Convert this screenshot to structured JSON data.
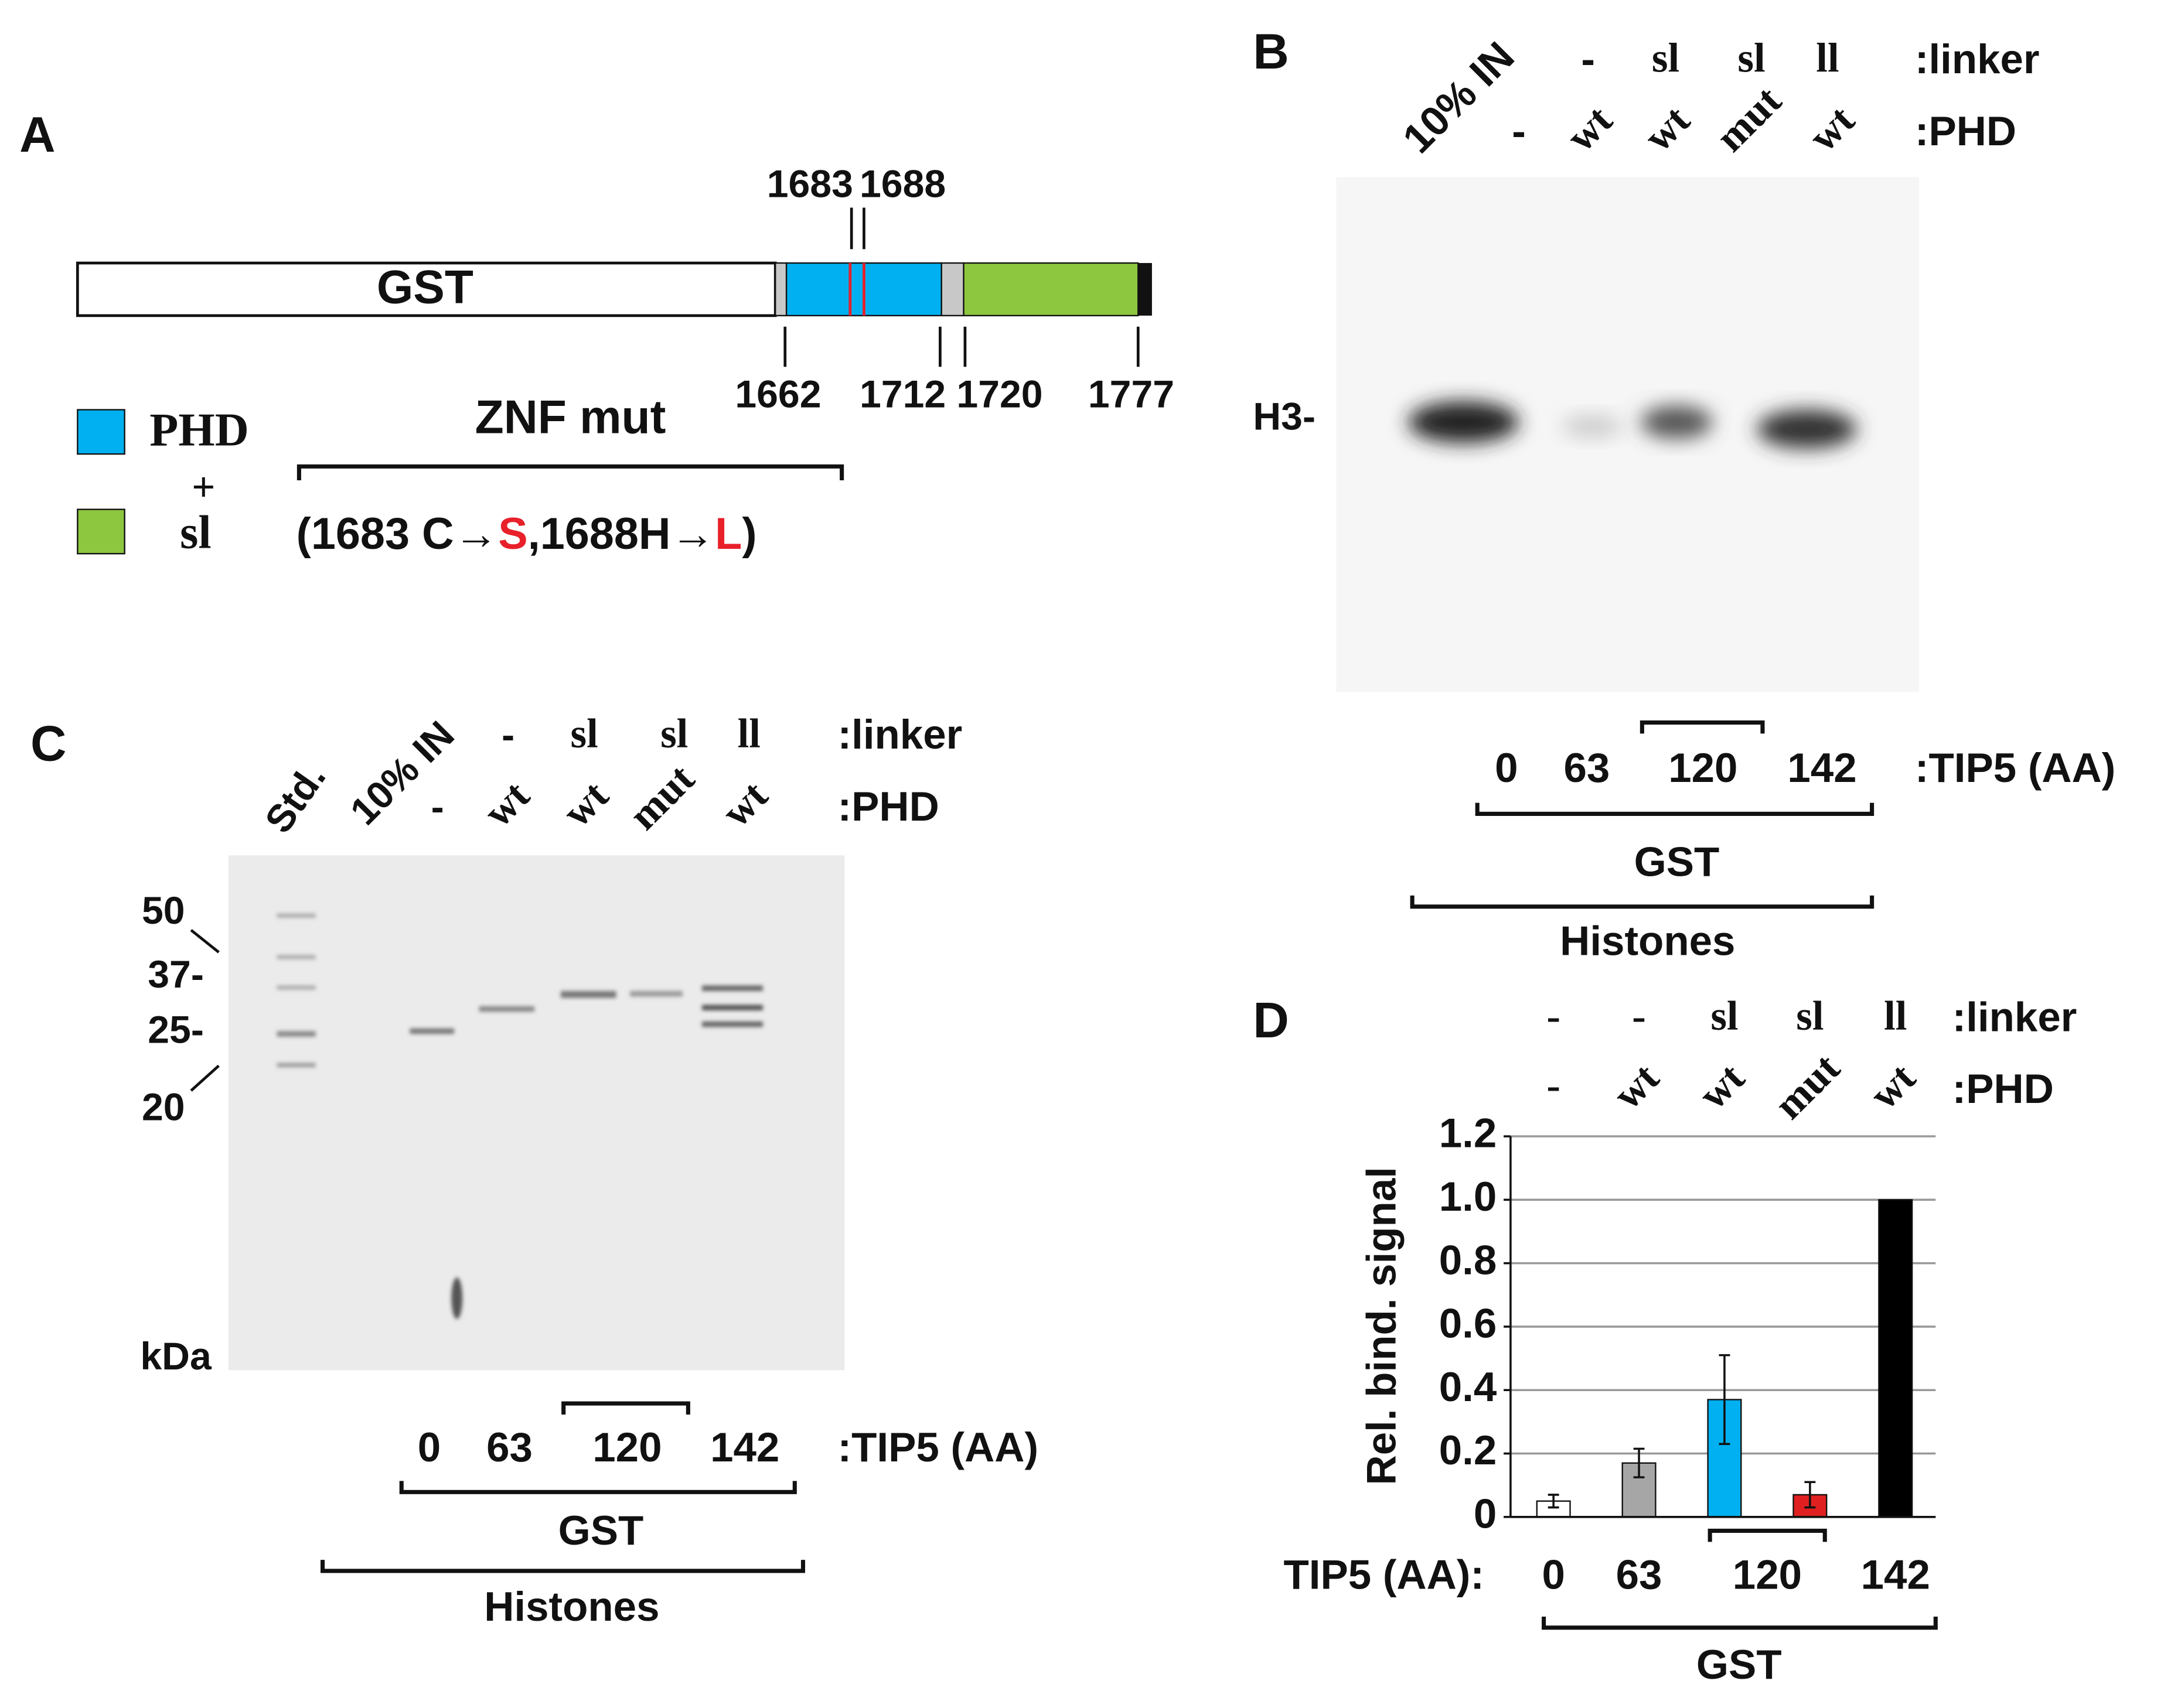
{
  "panel_a": {
    "label": "A",
    "domain": "GST",
    "positions_top": [
      "1683",
      "1688"
    ],
    "positions_bottom": [
      "1662",
      "1712",
      "1720",
      "1777"
    ],
    "legend": [
      "PHD",
      "sl"
    ],
    "plus": "+",
    "mut_title": "ZNF mut",
    "mut_text": [
      "(1683 C→",
      "S",
      ",1688H→",
      "L",
      ")"
    ]
  },
  "panel_b": {
    "label": "B",
    "input": "10% IN",
    "linker": [
      "-",
      "sl",
      "sl",
      "ll"
    ],
    "linker_label": ":linker",
    "phd": [
      "-",
      "wt",
      "wt",
      "mut",
      "wt"
    ],
    "phd_label": ":PHD",
    "band": "H3-",
    "tip5": [
      "0",
      "63",
      "120",
      "142"
    ],
    "tip5_label": ":TIP5 (AA)",
    "gst": "GST",
    "histones": "Histones"
  },
  "panel_c": {
    "label": "C",
    "std": "Std.",
    "input": "10% IN",
    "linker": [
      "-",
      "sl",
      "sl",
      "ll"
    ],
    "linker_label": ":linker",
    "phd": [
      "-",
      "wt",
      "wt",
      "mut",
      "wt"
    ],
    "phd_label": ":PHD",
    "markers": [
      "50",
      "37-",
      "25-",
      "20"
    ],
    "unit": "kDa",
    "tip5": [
      "0",
      "63",
      "120",
      "142"
    ],
    "tip5_label": ":TIP5 (AA)",
    "gst": "GST",
    "histones": "Histones"
  },
  "chart_data": {
    "type": "bar",
    "panel_label": "D",
    "y_label": "Rel. bind. signal",
    "linker": [
      "-",
      "-",
      "sl",
      "sl",
      "ll"
    ],
    "linker_label": ":linker",
    "phd": [
      "-",
      "wt",
      "wt",
      "mut",
      "wt"
    ],
    "phd_label": ":PHD",
    "x_label": "TIP5 (AA):",
    "categories": [
      "0",
      "63",
      "120",
      null,
      "142"
    ],
    "values": [
      0.05,
      0.17,
      0.37,
      0.07,
      1.0
    ],
    "errors": [
      0.02,
      0.045,
      0.14,
      0.04,
      0
    ],
    "colors": [
      "#ffffff",
      "#a6a6a6",
      "#00b0f0",
      "#e02020",
      "#000000"
    ],
    "ylim": [
      0,
      1.2
    ],
    "yticks": [
      0,
      0.2,
      0.4,
      0.6,
      0.8,
      {
        "value": 1,
        "label": "1.0"
      },
      1.2
    ],
    "grid": true,
    "group_label": "GST"
  }
}
